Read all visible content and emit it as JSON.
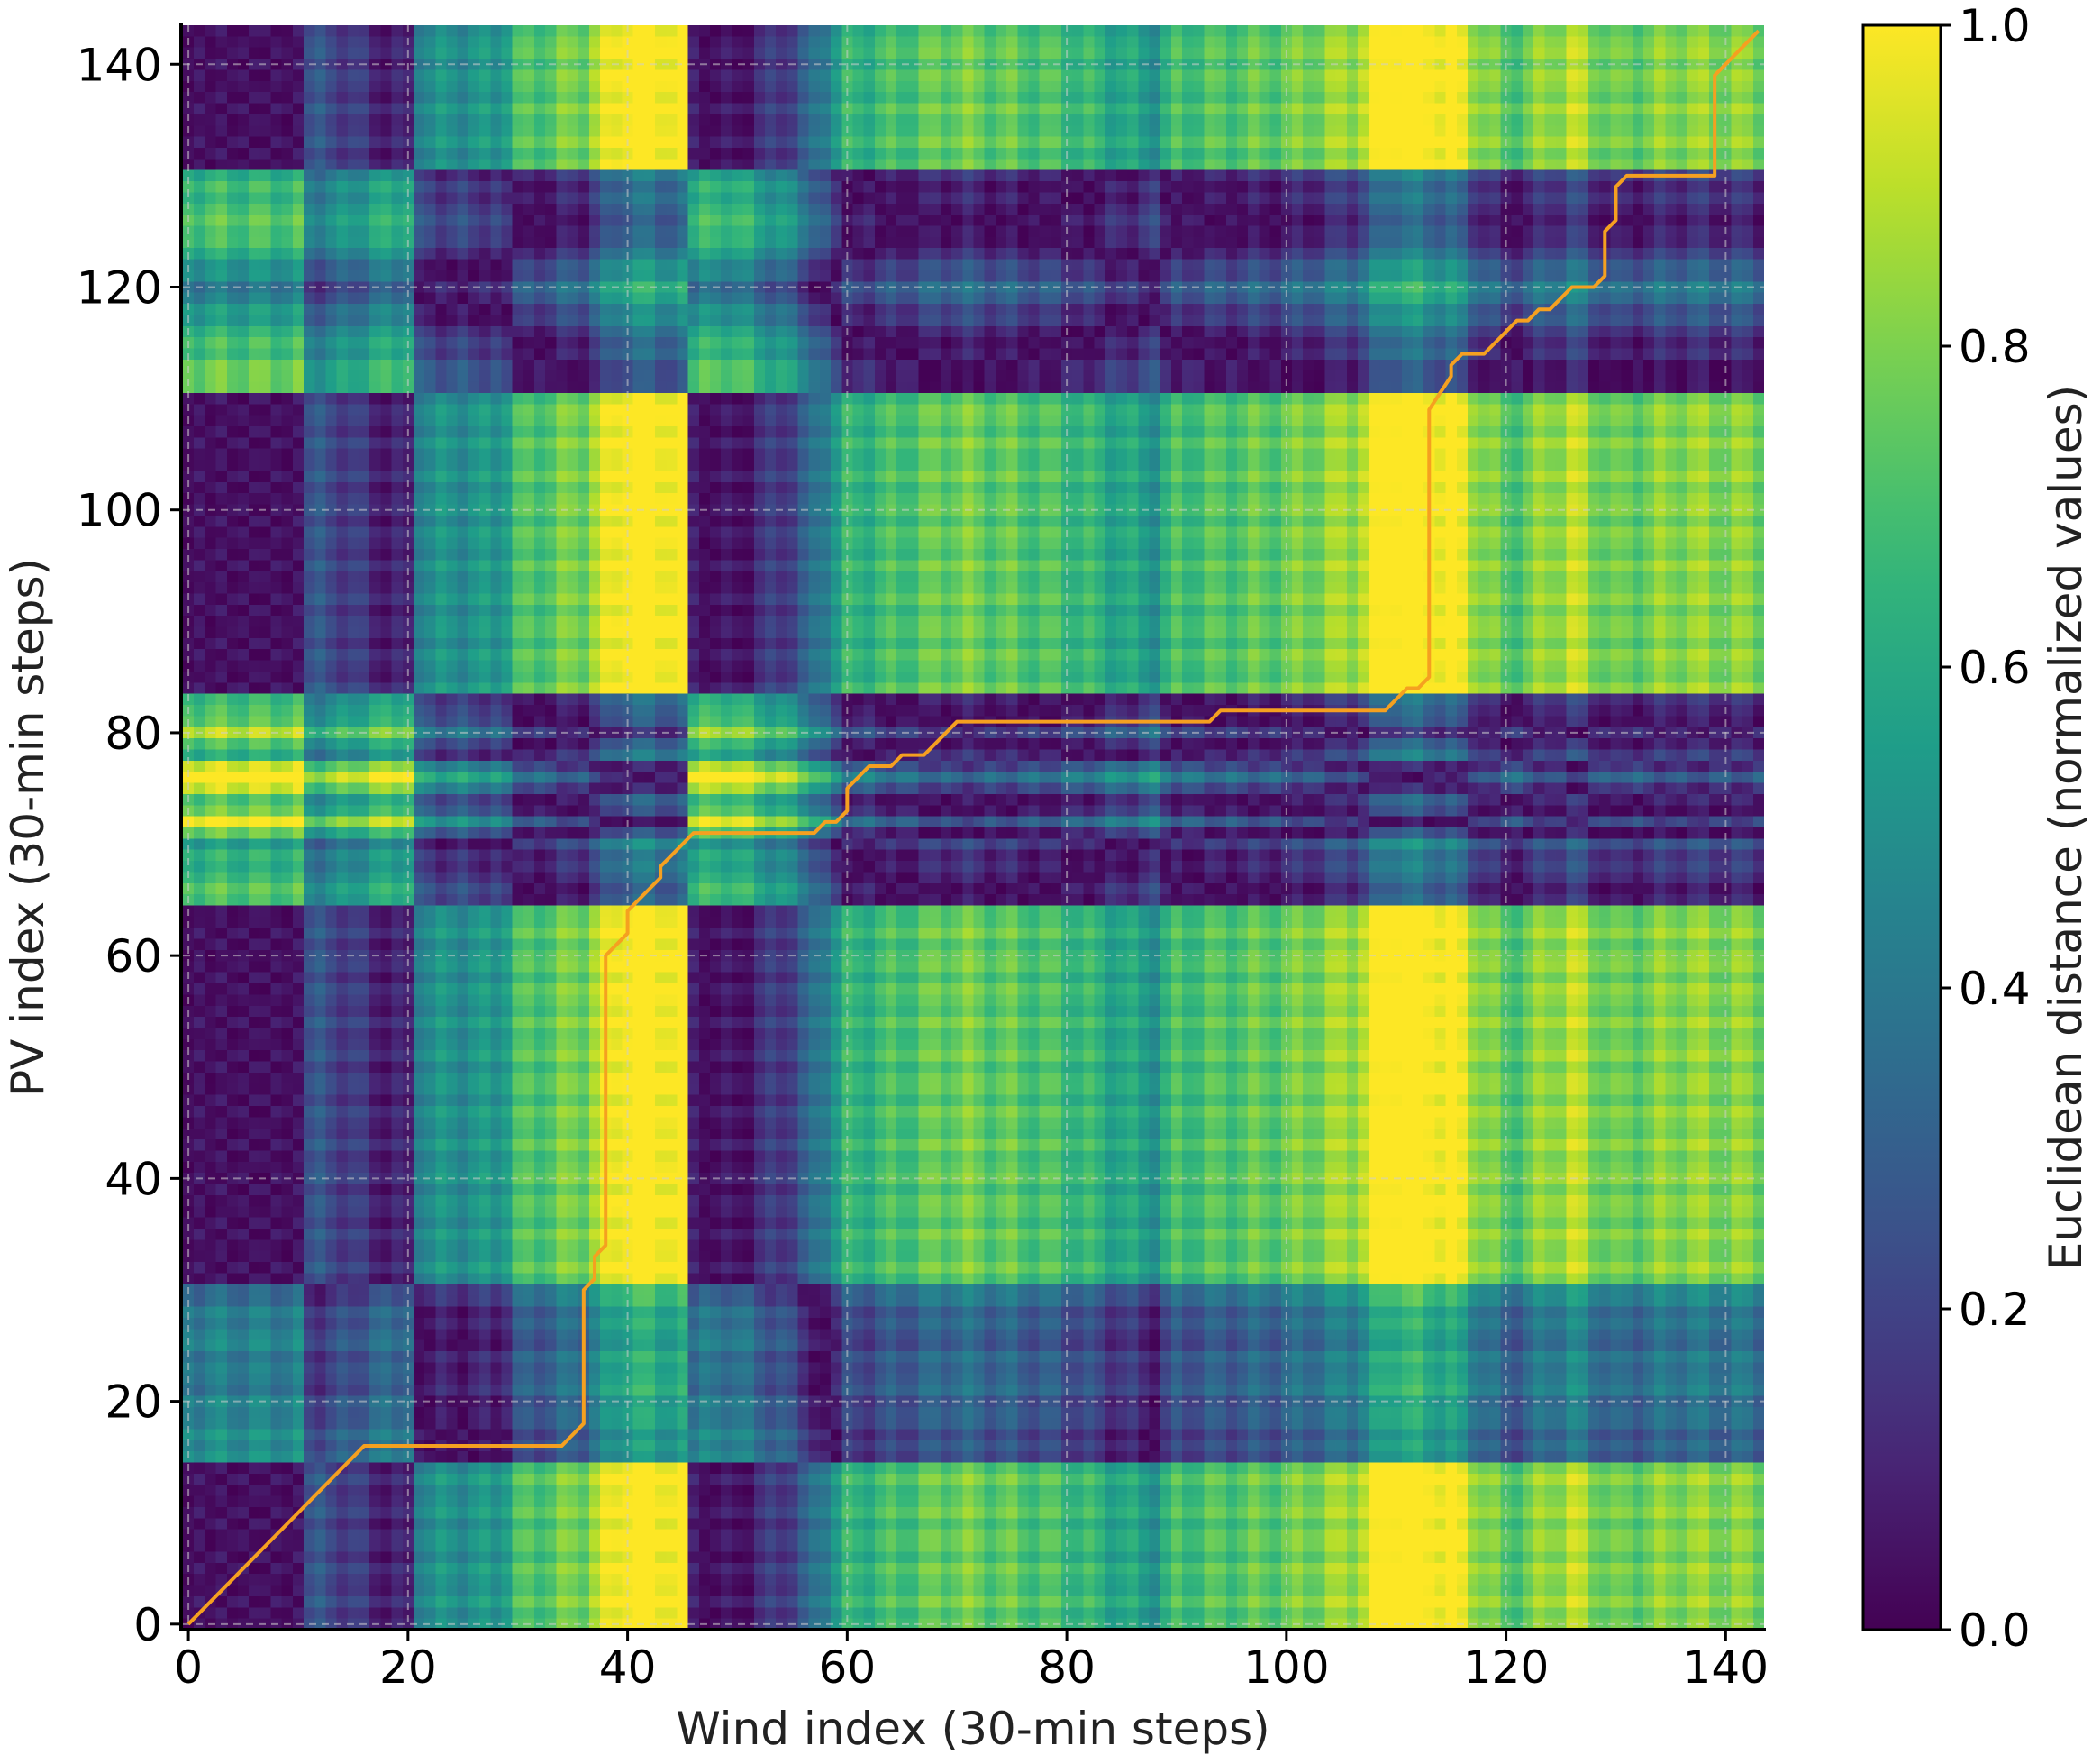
{
  "chart_data": {
    "type": "heatmap",
    "title": "",
    "xlabel": "Wind index (30-min steps)",
    "ylabel": "PV index (30-min steps)",
    "xlim": [
      0,
      143
    ],
    "ylim": [
      0,
      143
    ],
    "x_ticks": [
      0,
      20,
      40,
      60,
      80,
      100,
      120,
      140
    ],
    "y_ticks": [
      0,
      20,
      40,
      60,
      80,
      100,
      120,
      140
    ],
    "grid": true,
    "colormap": "viridis",
    "colorbar": {
      "label": "Euclidean distance (normalized values)",
      "range": [
        0.0,
        1.0
      ],
      "ticks": [
        "0.0",
        "0.2",
        "0.4",
        "0.6",
        "0.8",
        "1.0"
      ]
    },
    "matrix_model": {
      "description_note": "",
      "wind_profile": [
        [
          0,
          0.0
        ],
        [
          10,
          0.0
        ],
        [
          11,
          0.22
        ],
        [
          14,
          0.18
        ],
        [
          16,
          0.12
        ],
        [
          20,
          0.05
        ],
        [
          21,
          0.42
        ],
        [
          28,
          0.45
        ],
        [
          30,
          0.6
        ],
        [
          36,
          0.7
        ],
        [
          40,
          0.92
        ],
        [
          45,
          0.88
        ],
        [
          46,
          0.06
        ],
        [
          49,
          0.02
        ],
        [
          52,
          0.1
        ],
        [
          56,
          0.22
        ],
        [
          58,
          0.4
        ],
        [
          60,
          0.55
        ],
        [
          64,
          0.6
        ],
        [
          70,
          0.68
        ],
        [
          80,
          0.6
        ],
        [
          88,
          0.46
        ],
        [
          90,
          0.6
        ],
        [
          100,
          0.66
        ],
        [
          106,
          0.75
        ],
        [
          110,
          0.95
        ],
        [
          115,
          0.88
        ],
        [
          118,
          0.72
        ],
        [
          120,
          0.62
        ],
        [
          126,
          0.78
        ],
        [
          130,
          0.65
        ],
        [
          136,
          0.72
        ],
        [
          143,
          0.7
        ]
      ],
      "pv_profile": [
        [
          0,
          0.0
        ],
        [
          14,
          0.0
        ],
        [
          15,
          0.45
        ],
        [
          22,
          0.35
        ],
        [
          26,
          0.4
        ],
        [
          30,
          0.3
        ],
        [
          31,
          0.0
        ],
        [
          64,
          0.0
        ],
        [
          65,
          0.65
        ],
        [
          70,
          0.5
        ],
        [
          72,
          0.85
        ],
        [
          74,
          0.6
        ],
        [
          76,
          1.0
        ],
        [
          78,
          0.55
        ],
        [
          80,
          0.75
        ],
        [
          83,
          0.55
        ],
        [
          84,
          0.0
        ],
        [
          110,
          0.0
        ],
        [
          111,
          0.7
        ],
        [
          115,
          0.6
        ],
        [
          120,
          0.35
        ],
        [
          125,
          0.65
        ],
        [
          130,
          0.55
        ],
        [
          131,
          0.0
        ],
        [
          143,
          0.0
        ]
      ]
    },
    "warping_path": [
      [
        0,
        0
      ],
      [
        16,
        16
      ],
      [
        34,
        16
      ],
      [
        36,
        18
      ],
      [
        36,
        30
      ],
      [
        37,
        31
      ],
      [
        37,
        33
      ],
      [
        38,
        34
      ],
      [
        38,
        60
      ],
      [
        40,
        62
      ],
      [
        40,
        64
      ],
      [
        43,
        67
      ],
      [
        43,
        68
      ],
      [
        46,
        71
      ],
      [
        57,
        71
      ],
      [
        58,
        72
      ],
      [
        59,
        72
      ],
      [
        60,
        73
      ],
      [
        60,
        75
      ],
      [
        61,
        76
      ],
      [
        62,
        77
      ],
      [
        64,
        77
      ],
      [
        65,
        78
      ],
      [
        67,
        78
      ],
      [
        69,
        80
      ],
      [
        70,
        81
      ],
      [
        93,
        81
      ],
      [
        94,
        82
      ],
      [
        109,
        82
      ],
      [
        111,
        84
      ],
      [
        112,
        84
      ],
      [
        113,
        85
      ],
      [
        113,
        109
      ],
      [
        115,
        112
      ],
      [
        115,
        113
      ],
      [
        116,
        114
      ],
      [
        118,
        114
      ],
      [
        121,
        117
      ],
      [
        122,
        117
      ],
      [
        123,
        118
      ],
      [
        124,
        118
      ],
      [
        126,
        120
      ],
      [
        128,
        120
      ],
      [
        129,
        121
      ],
      [
        129,
        125
      ],
      [
        130,
        126
      ],
      [
        130,
        129
      ],
      [
        131,
        130
      ],
      [
        139,
        130
      ],
      [
        139,
        139
      ],
      [
        143,
        143
      ]
    ],
    "path_color": "#f5a020"
  }
}
